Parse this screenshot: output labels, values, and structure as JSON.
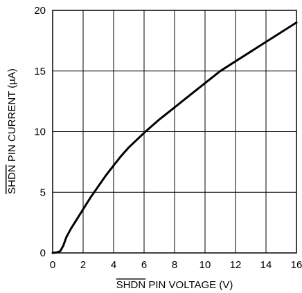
{
  "chart_data": {
    "type": "line",
    "xlabel": "SHDN PIN VOLTAGE (V)",
    "ylabel": "SHDN PIN CURRENT (µA)",
    "overbar_word": "SHDN",
    "xlabel_rest": " PIN VOLTAGE (V)",
    "ylabel_rest": " PIN CURRENT (µA)",
    "xlim": [
      0,
      16
    ],
    "ylim": [
      0,
      20
    ],
    "x_ticks": [
      0,
      2,
      4,
      6,
      8,
      10,
      12,
      14,
      16
    ],
    "y_ticks": [
      0,
      5,
      10,
      15,
      20
    ],
    "grid": true,
    "series": [
      {
        "x": [
          0,
          0.3,
          0.5,
          0.7,
          0.9,
          1.2,
          1.6,
          2.0,
          2.5,
          3.0,
          3.5,
          4.0,
          4.5,
          5.0,
          5.5,
          6.0,
          7.0,
          8.0,
          9.0,
          10.0,
          11.0,
          12.0,
          13.0,
          14.0,
          15.0,
          16.0
        ],
        "y": [
          0,
          0.05,
          0.15,
          0.6,
          1.3,
          2.0,
          2.8,
          3.6,
          4.6,
          5.5,
          6.4,
          7.2,
          8.0,
          8.7,
          9.3,
          9.9,
          11.0,
          12.0,
          13.0,
          14.0,
          15.0,
          15.8,
          16.6,
          17.4,
          18.2,
          19.0
        ]
      }
    ]
  }
}
